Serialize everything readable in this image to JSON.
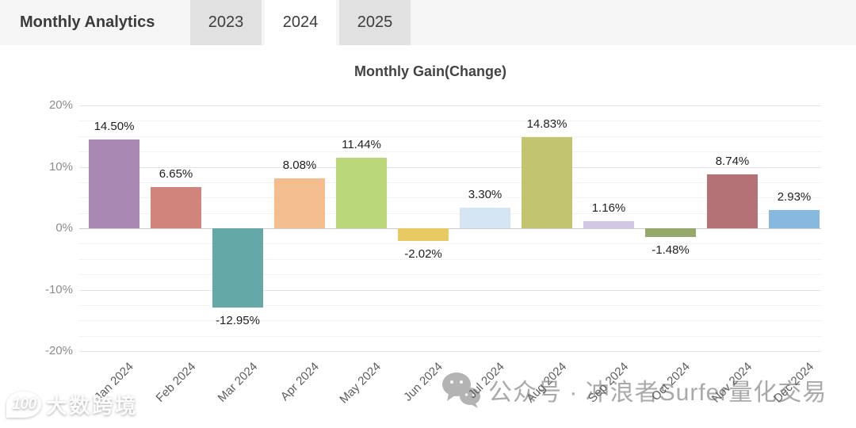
{
  "header": {
    "title": "Monthly Analytics",
    "tabs": [
      {
        "label": "2023",
        "active": false
      },
      {
        "label": "2024",
        "active": true
      },
      {
        "label": "2025",
        "active": false
      }
    ]
  },
  "chart_data": {
    "type": "bar",
    "title": "Monthly Gain(Change)",
    "categories": [
      "Jan 2024",
      "Feb 2024",
      "Mar 2024",
      "Apr 2024",
      "May 2024",
      "Jun 2024",
      "Jul 2024",
      "Aug 2024",
      "Sep 2024",
      "Oct 2024",
      "Nov 2024",
      "Dec 2024"
    ],
    "values": [
      14.5,
      6.65,
      -12.95,
      8.08,
      11.44,
      -2.02,
      3.3,
      14.83,
      1.16,
      -1.48,
      8.74,
      2.93
    ],
    "value_labels": [
      "14.50%",
      "6.65%",
      "-12.95%",
      "8.08%",
      "11.44%",
      "-2.02%",
      "3.30%",
      "14.83%",
      "1.16%",
      "-1.48%",
      "8.74%",
      "2.93%"
    ],
    "bar_colors": [
      "#a889b4",
      "#d1847c",
      "#64a9a7",
      "#f3bd8e",
      "#bad87a",
      "#e9c963",
      "#d5e5f3",
      "#c3c56e",
      "#d1c8e5",
      "#95a96b",
      "#b57276",
      "#87b9df"
    ],
    "ylim": [
      -20,
      20
    ],
    "y_major_step": 10,
    "y_minor_step": 2.5,
    "y_tick_labels": [
      "20%",
      "10%",
      "0%",
      "-10%",
      "-20%"
    ],
    "grid": true,
    "legend": null,
    "xlabel": "",
    "ylabel": ""
  },
  "watermarks": {
    "bottom_left": {
      "logo": "100",
      "text": "大数跨境"
    },
    "center": {
      "icon": "wechat-icon",
      "text": "公众号 · 冲浪者Surfer量化交易"
    }
  },
  "colors": {
    "header_bg": "#f5f5f6",
    "tab_active_bg": "#ffffff",
    "tab_inactive_bg": "#e1e1e1",
    "zero_line": "#cccccc",
    "gridline": "#e3e3e3"
  }
}
